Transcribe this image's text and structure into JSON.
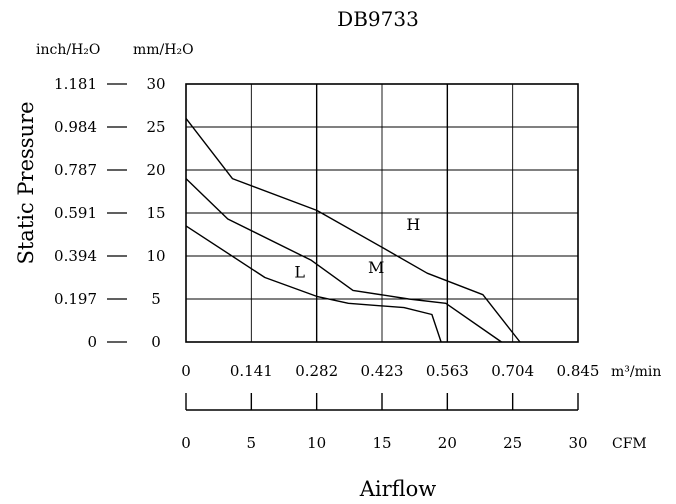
{
  "chart_data": {
    "type": "line",
    "title": "DB9733",
    "ylabel": "Static Pressure",
    "xlabel": "Airflow",
    "y_unit_inch": "inch/H₂O",
    "y_unit_mm": "mm/H₂O",
    "x_unit_m3": "m³/min",
    "x_unit_cfm": "CFM",
    "y_ticks_inch": [
      "0",
      "0.197",
      "0.394",
      "0.591",
      "0.787",
      "0.984",
      "1.181"
    ],
    "y_ticks_mm": [
      "0",
      "5",
      "10",
      "15",
      "20",
      "25",
      "30"
    ],
    "x_ticks_m3": [
      "0",
      "0.141",
      "0.282",
      "0.423",
      "0.563",
      "0.704",
      "0.845"
    ],
    "x_ticks_cfm": [
      "0",
      "5",
      "10",
      "15",
      "20",
      "25",
      "30"
    ],
    "xlim_m3": [
      0,
      0.845
    ],
    "ylim_mm": [
      0,
      30
    ],
    "grid": true,
    "series": [
      {
        "name": "H",
        "x": [
          0,
          0.1,
          0.282,
          0.423,
          0.52,
          0.64,
          0.72
        ],
        "y": [
          26,
          19,
          15.3,
          11,
          8,
          5.5,
          0
        ]
      },
      {
        "name": "M",
        "x": [
          0,
          0.09,
          0.27,
          0.36,
          0.48,
          0.56,
          0.68
        ],
        "y": [
          19,
          14.3,
          9.5,
          6,
          5,
          4.5,
          0
        ]
      },
      {
        "name": "L",
        "x": [
          0,
          0.17,
          0.282,
          0.35,
          0.47,
          0.53,
          0.55
        ],
        "y": [
          13.5,
          7.5,
          5.3,
          4.5,
          4,
          3.2,
          0
        ]
      }
    ]
  }
}
